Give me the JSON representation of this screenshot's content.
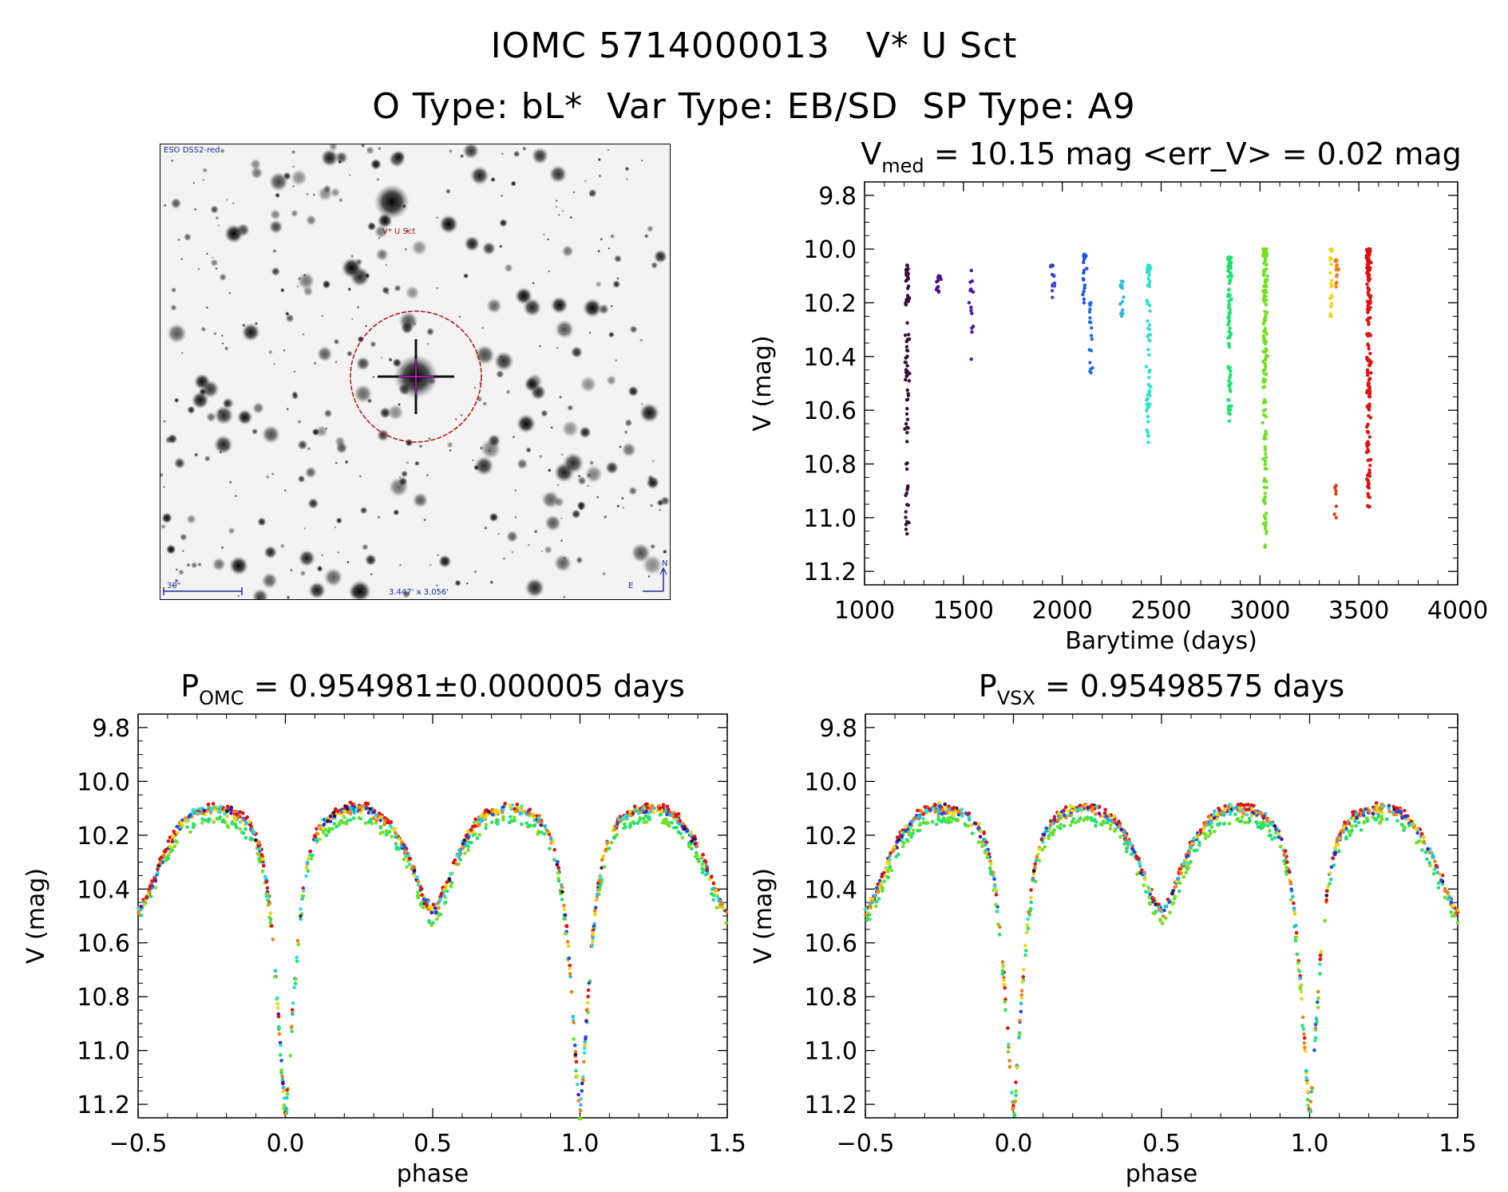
{
  "header": {
    "title": "IOMC 5714000013   V* U Sct",
    "subtitle": "O Type: bL*  Var Type: EB/SD  SP Type: A9"
  },
  "finder_chart": {
    "survey_label": "ESO DSS2-red",
    "target_label": "V* U Sct",
    "scale_label": "30\"",
    "size_label": "3.447' x 3.056'",
    "north_label": "N",
    "east_label": "E"
  },
  "chart_data": [
    {
      "type": "scatter",
      "id": "light-curve",
      "title_main": "V",
      "title_sub": "med",
      "title_rest": " = 10.15 mag <err_V> = 0.02 mag",
      "xlabel": "Barytime (days)",
      "ylabel": "V (mag)",
      "xlim": [
        1000,
        4000
      ],
      "ylim": [
        11.25,
        9.75
      ],
      "y_inverted": true,
      "xticks": [
        "1000",
        "1500",
        "2000",
        "2500",
        "3000",
        "3500",
        "4000"
      ],
      "yticks": [
        "9.8",
        "10.0",
        "10.2",
        "10.4",
        "10.6",
        "10.8",
        "11.0",
        "11.2"
      ],
      "groups": [
        {
          "x": 1215,
          "ymin": 10.06,
          "ymax": 11.06,
          "color": "#3a0a3a",
          "n": 80
        },
        {
          "x": 1375,
          "ymin": 10.1,
          "ymax": 10.16,
          "color": "#4a1090",
          "n": 12
        },
        {
          "x": 1540,
          "ymin": 10.08,
          "ymax": 10.41,
          "color": "#4a18b0",
          "n": 14
        },
        {
          "x": 1950,
          "ymin": 10.06,
          "ymax": 10.18,
          "color": "#3a48c8",
          "n": 12
        },
        {
          "x": 2110,
          "ymin": 10.02,
          "ymax": 10.2,
          "color": "#2050e0",
          "n": 18
        },
        {
          "x": 2145,
          "ymin": 10.2,
          "ymax": 10.46,
          "color": "#2070e0",
          "n": 16
        },
        {
          "x": 2300,
          "ymin": 10.12,
          "ymax": 10.25,
          "color": "#30b8e0",
          "n": 14
        },
        {
          "x": 2435,
          "ymin": 10.06,
          "ymax": 10.72,
          "color": "#30e0d0",
          "n": 60
        },
        {
          "x": 2845,
          "ymin": 10.03,
          "ymax": 10.64,
          "color": "#20e070",
          "n": 90
        },
        {
          "x": 3025,
          "ymin": 10.0,
          "ymax": 11.11,
          "color": "#70e020",
          "n": 150
        },
        {
          "x": 3360,
          "ymin": 10.0,
          "ymax": 10.25,
          "color": "#e8d810",
          "n": 20
        },
        {
          "x": 3385,
          "ymin": 10.04,
          "ymax": 10.14,
          "color": "#f08018",
          "n": 14
        },
        {
          "x": 3385,
          "ymin": 10.88,
          "ymax": 11.0,
          "color": "#e04010",
          "n": 6
        },
        {
          "x": 3550,
          "ymin": 10.0,
          "ymax": 10.96,
          "color": "#e01010",
          "n": 170
        }
      ]
    },
    {
      "type": "scatter",
      "id": "phase-omc",
      "title_main": "P",
      "title_sub": "OMC",
      "title_rest": " = 0.954981±0.000005 days",
      "period_days": 0.954981,
      "period_err_days": 5e-06,
      "xlabel": "phase",
      "ylabel": "V (mag)",
      "xlim": [
        -0.5,
        1.5
      ],
      "ylim": [
        11.25,
        9.75
      ],
      "y_inverted": true,
      "xticks": [
        "−0.5",
        "0.0",
        "0.5",
        "1.0",
        "1.5"
      ],
      "yticks": [
        "9.8",
        "10.0",
        "10.2",
        "10.4",
        "10.6",
        "10.8",
        "11.0",
        "11.2"
      ],
      "curve": {
        "max_mag": 10.06,
        "primary_min_mag": 11.1,
        "secondary_min_mag": 10.36
      }
    },
    {
      "type": "scatter",
      "id": "phase-vsx",
      "title_main": "P",
      "title_sub": "VSX",
      "title_rest": " = 0.95498575 days",
      "period_days": 0.95498575,
      "xlabel": "phase",
      "ylabel": "V (mag)",
      "xlim": [
        -0.5,
        1.5
      ],
      "ylim": [
        11.25,
        9.75
      ],
      "y_inverted": true,
      "xticks": [
        "−0.5",
        "0.0",
        "0.5",
        "1.0",
        "1.5"
      ],
      "yticks": [
        "9.8",
        "10.0",
        "10.2",
        "10.4",
        "10.6",
        "10.8",
        "11.0",
        "11.2"
      ],
      "curve": {
        "max_mag": 10.06,
        "primary_min_mag": 11.1,
        "secondary_min_mag": 10.36
      }
    }
  ]
}
